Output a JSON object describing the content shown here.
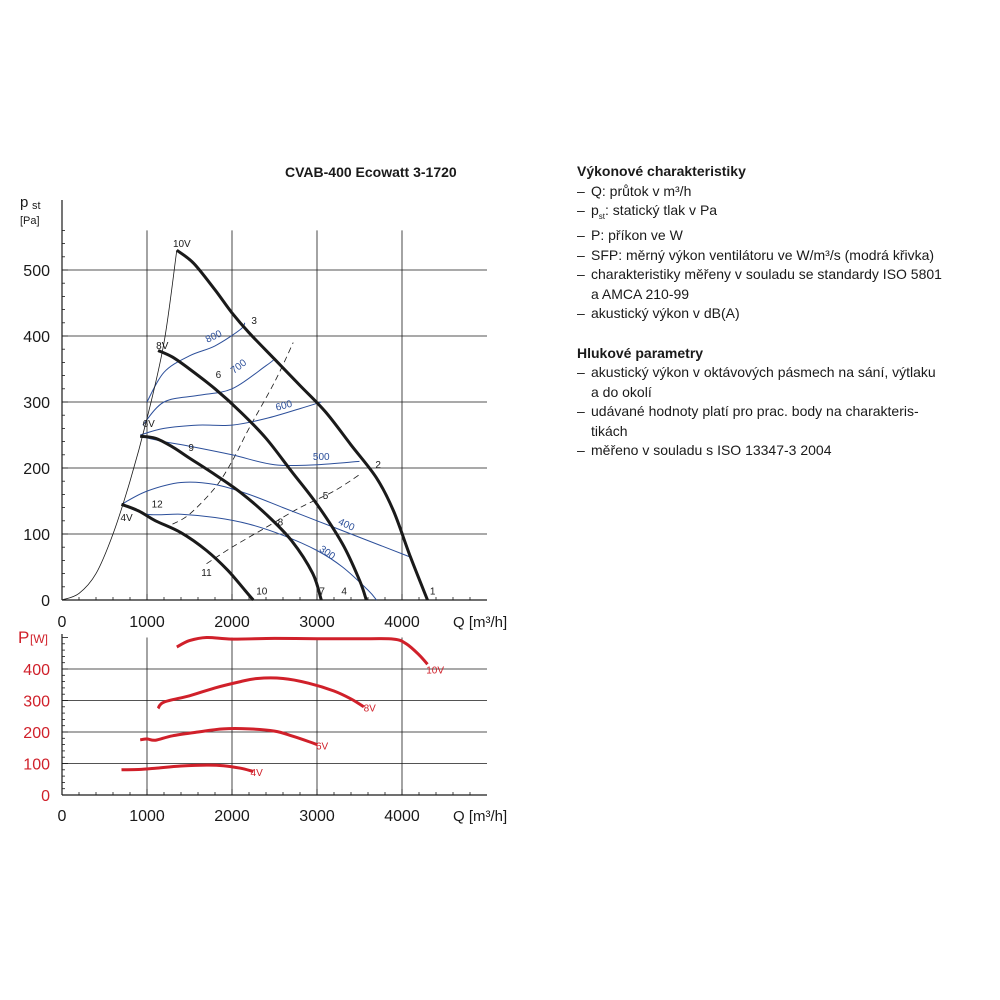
{
  "chart_data": [
    {
      "type": "line",
      "title": "CVAB-400 Ecowatt 3-1720",
      "ylabel_main": "p",
      "ylabel_sub": "st",
      "ylabel_unit": "[Pa]",
      "xlabel": "Q [m³/h]",
      "xlim": [
        0,
        4800
      ],
      "ylim": [
        0,
        560
      ],
      "xticks": [
        0,
        1000,
        2000,
        3000,
        4000
      ],
      "yticks": [
        0,
        100,
        200,
        300,
        400,
        500
      ],
      "grid": true,
      "series_black": [
        {
          "name": "10V",
          "points": [
            [
              1350,
              530
            ],
            [
              1550,
              510
            ],
            [
              1800,
              470
            ],
            [
              2000,
              435
            ],
            [
              2200,
              405
            ],
            [
              2500,
              365
            ],
            [
              2800,
              325
            ],
            [
              3100,
              285
            ],
            [
              3400,
              235
            ],
            [
              3700,
              185
            ],
            [
              3900,
              135
            ],
            [
              4100,
              65
            ],
            [
              4300,
              0
            ]
          ]
        },
        {
          "name": "8V",
          "points": [
            [
              1130,
              378
            ],
            [
              1300,
              368
            ],
            [
              1500,
              350
            ],
            [
              1800,
              320
            ],
            [
              2100,
              285
            ],
            [
              2400,
              245
            ],
            [
              2700,
              195
            ],
            [
              3000,
              145
            ],
            [
              3300,
              85
            ],
            [
              3500,
              30
            ],
            [
              3580,
              0
            ]
          ]
        },
        {
          "name": "6V",
          "points": [
            [
              920,
              248
            ],
            [
              1100,
              245
            ],
            [
              1300,
              232
            ],
            [
              1500,
              215
            ],
            [
              1800,
              190
            ],
            [
              2100,
              163
            ],
            [
              2400,
              130
            ],
            [
              2700,
              90
            ],
            [
              2950,
              40
            ],
            [
              3050,
              0
            ]
          ]
        },
        {
          "name": "4V",
          "points": [
            [
              700,
              145
            ],
            [
              900,
              135
            ],
            [
              1100,
              120
            ],
            [
              1400,
              102
            ],
            [
              1700,
              75
            ],
            [
              1950,
              45
            ],
            [
              2150,
              15
            ],
            [
              2250,
              0
            ]
          ]
        },
        {
          "name": "",
          "points": [
            [
              0,
              0
            ],
            [
              200,
              10
            ],
            [
              400,
              40
            ],
            [
              600,
              100
            ],
            [
              800,
              180
            ],
            [
              1000,
              275
            ],
            [
              1200,
              390
            ],
            [
              1350,
              530
            ]
          ]
        }
      ],
      "series_blue": [
        {
          "name": "800",
          "points": [
            [
              1000,
              300
            ],
            [
              1200,
              345
            ],
            [
              1500,
              370
            ],
            [
              1800,
              385
            ],
            [
              2100,
              410
            ],
            [
              2150,
              420
            ]
          ]
        },
        {
          "name": "700",
          "points": [
            [
              950,
              265
            ],
            [
              1200,
              300
            ],
            [
              1600,
              310
            ],
            [
              2000,
              320
            ],
            [
              2400,
              355
            ],
            [
              2500,
              365
            ]
          ]
        },
        {
          "name": "600",
          "points": [
            [
              920,
              250
            ],
            [
              1200,
              260
            ],
            [
              1600,
              265
            ],
            [
              2000,
              265
            ],
            [
              2400,
              275
            ],
            [
              2800,
              290
            ],
            [
              3050,
              300
            ]
          ]
        },
        {
          "name": "500",
          "points": [
            [
              920,
              248
            ],
            [
              1200,
              240
            ],
            [
              1500,
              233
            ],
            [
              2000,
              220
            ],
            [
              2500,
              205
            ],
            [
              3000,
              205
            ],
            [
              3500,
              210
            ]
          ]
        },
        {
          "name": "400",
          "points": [
            [
              700,
              145
            ],
            [
              1000,
              165
            ],
            [
              1400,
              178
            ],
            [
              1800,
              175
            ],
            [
              2200,
              160
            ],
            [
              2600,
              140
            ],
            [
              3000,
              120
            ],
            [
              3400,
              100
            ],
            [
              3800,
              80
            ],
            [
              4100,
              65
            ]
          ]
        },
        {
          "name": "300",
          "points": [
            [
              700,
              145
            ],
            [
              1000,
              130
            ],
            [
              1400,
              130
            ],
            [
              1800,
              125
            ],
            [
              2200,
              115
            ],
            [
              2600,
              98
            ],
            [
              3000,
              75
            ],
            [
              3300,
              50
            ],
            [
              3600,
              15
            ],
            [
              3700,
              0
            ]
          ]
        }
      ],
      "efficiency_lines": [
        {
          "points": [
            [
              1300,
              115
            ],
            [
              1500,
              130
            ],
            [
              1800,
              170
            ],
            [
              2000,
              210
            ],
            [
              2200,
              260
            ],
            [
              2500,
              330
            ],
            [
              2720,
              390
            ]
          ]
        },
        {
          "points": [
            [
              1700,
              55
            ],
            [
              2000,
              80
            ],
            [
              2400,
              110
            ],
            [
              2800,
              140
            ],
            [
              3200,
              165
            ],
            [
              3500,
              190
            ]
          ]
        }
      ],
      "point_labels": [
        {
          "text": "10V",
          "x": 1410,
          "y": 535
        },
        {
          "text": "8V",
          "x": 1180,
          "y": 380
        },
        {
          "text": "6V",
          "x": 1020,
          "y": 262
        },
        {
          "text": "4V",
          "x": 760,
          "y": 120
        },
        {
          "text": "1",
          "x": 4360,
          "y": 8
        },
        {
          "text": "2",
          "x": 3720,
          "y": 200
        },
        {
          "text": "3",
          "x": 2260,
          "y": 418
        },
        {
          "text": "4",
          "x": 3320,
          "y": 8
        },
        {
          "text": "5",
          "x": 3100,
          "y": 153
        },
        {
          "text": "6",
          "x": 1840,
          "y": 336
        },
        {
          "text": "7",
          "x": 3060,
          "y": 8
        },
        {
          "text": "8",
          "x": 2570,
          "y": 113
        },
        {
          "text": "9",
          "x": 1520,
          "y": 226
        },
        {
          "text": "10",
          "x": 2350,
          "y": 8
        },
        {
          "text": "11",
          "x": 1700,
          "y": 36
        },
        {
          "text": "12",
          "x": 1120,
          "y": 140
        }
      ],
      "blue_labels": [
        {
          "text": "800",
          "x": 1800,
          "y": 395,
          "rot": -25
        },
        {
          "text": "700",
          "x": 2100,
          "y": 350,
          "rot": -38
        },
        {
          "text": "600",
          "x": 2620,
          "y": 290,
          "rot": -15
        },
        {
          "text": "500",
          "x": 3050,
          "y": 212,
          "rot": 0
        },
        {
          "text": "400",
          "x": 3330,
          "y": 110,
          "rot": 25
        },
        {
          "text": "300",
          "x": 3100,
          "y": 68,
          "rot": 35
        }
      ]
    },
    {
      "type": "line",
      "ylabel_main": "P",
      "ylabel_unit": "[W]",
      "xlabel": "Q [m³/h]",
      "xlim": [
        0,
        4800
      ],
      "ylim": [
        0,
        500
      ],
      "xticks": [
        0,
        1000,
        2000,
        3000,
        4000
      ],
      "yticks": [
        0,
        100,
        200,
        300,
        400
      ],
      "grid": true,
      "series": [
        {
          "name": "10V",
          "points": [
            [
              1350,
              470
            ],
            [
              1500,
              490
            ],
            [
              1700,
              500
            ],
            [
              2000,
              495
            ],
            [
              2500,
              497
            ],
            [
              3000,
              496
            ],
            [
              3500,
              496
            ],
            [
              3900,
              495
            ],
            [
              4050,
              480
            ],
            [
              4200,
              445
            ],
            [
              4300,
              415
            ]
          ]
        },
        {
          "name": "8V",
          "points": [
            [
              1130,
              275
            ],
            [
              1200,
              295
            ],
            [
              1500,
              315
            ],
            [
              1800,
              340
            ],
            [
              2100,
              360
            ],
            [
              2300,
              370
            ],
            [
              2600,
              370
            ],
            [
              2900,
              355
            ],
            [
              3200,
              330
            ],
            [
              3400,
              305
            ],
            [
              3550,
              280
            ]
          ]
        },
        {
          "name": "6V",
          "points": [
            [
              920,
              175
            ],
            [
              1000,
              178
            ],
            [
              1100,
              174
            ],
            [
              1300,
              188
            ],
            [
              1600,
              200
            ],
            [
              1900,
              210
            ],
            [
              2200,
              210
            ],
            [
              2500,
              203
            ],
            [
              2700,
              188
            ],
            [
              2900,
              170
            ],
            [
              3000,
              160
            ]
          ]
        },
        {
          "name": "4V",
          "points": [
            [
              700,
              80
            ],
            [
              900,
              81
            ],
            [
              1100,
              85
            ],
            [
              1400,
              92
            ],
            [
              1700,
              95
            ],
            [
              1900,
              93
            ],
            [
              2100,
              85
            ],
            [
              2250,
              75
            ]
          ]
        }
      ],
      "series_labels": [
        {
          "text": "10V",
          "x": 4390,
          "y": 385
        },
        {
          "text": "8V",
          "x": 3620,
          "y": 265
        },
        {
          "text": "6V",
          "x": 3060,
          "y": 145
        },
        {
          "text": "4V",
          "x": 2290,
          "y": 60
        }
      ],
      "colors": {
        "curve": "#d0202a",
        "grid": "#1a1a1a"
      }
    }
  ],
  "legend": {
    "section1_title": "Výkonové charakteristiky",
    "items1": [
      "Q: průtok v m³/h",
      "pst: statický tlak v Pa",
      "P: příkon ve W",
      "SFP: měrný výkon ventilátoru ve W/m³/s (modrá křivka)",
      "charakteristiky měřeny v souladu se standardy ISO 5801",
      "akustický výkon v dB(A)"
    ],
    "item1_5_cont": "a AMCA 210-99",
    "section2_title": "Hlukové parametry",
    "items2": [
      "akustický výkon v oktávových pásmech na sání, výtlaku",
      "udávané hodnoty platí pro prac. body na charakteris-",
      "měřeno v souladu s ISO 13347-3 2004"
    ],
    "item2_1_cont": "a do okolí",
    "item2_2_cont": "tikách"
  },
  "colors": {
    "black_curve": "#1a1a1a",
    "blue_curve": "#2c4f9a",
    "red_curve": "#d0202a"
  }
}
